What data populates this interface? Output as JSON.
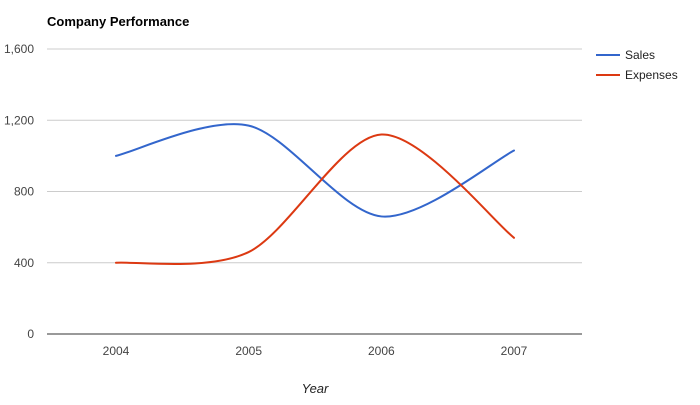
{
  "chart_data": {
    "type": "line",
    "title": "Company Performance",
    "xlabel": "Year",
    "ylabel": "",
    "categories": [
      "2004",
      "2005",
      "2006",
      "2007"
    ],
    "yticks": [
      "0",
      "400",
      "800",
      "1,200",
      "1,600"
    ],
    "ytick_values": [
      0,
      400,
      800,
      1200,
      1600
    ],
    "ylim": [
      0,
      1600
    ],
    "grid": true,
    "legend_position": "right",
    "curve": "smooth",
    "series": [
      {
        "name": "Sales",
        "values": [
          1000,
          1170,
          660,
          1030
        ],
        "color": "#3366cc"
      },
      {
        "name": "Expenses",
        "values": [
          400,
          460,
          1120,
          540
        ],
        "color": "#dc3912"
      }
    ]
  }
}
